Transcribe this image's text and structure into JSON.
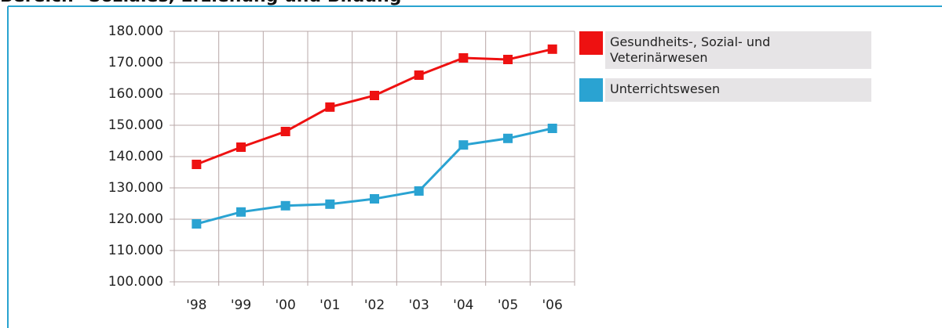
{
  "chart_data": {
    "type": "line",
    "title": "Bereich \"Soziales, Erziehung und Bildung\"",
    "categories": [
      "'98",
      "'99",
      "'00",
      "'01",
      "'02",
      "'03",
      "'04",
      "'05",
      "'06"
    ],
    "series": [
      {
        "name": "Gesundheits-, Sozial- und Veterinärwesen",
        "color": "#ee1111",
        "values": [
          137500,
          143000,
          148000,
          155800,
          159500,
          166000,
          171500,
          171000,
          174300
        ]
      },
      {
        "name": "Unterrichtswesen",
        "color": "#2aa3d2",
        "values": [
          118500,
          122300,
          124300,
          124800,
          126500,
          129000,
          143700,
          145800,
          149000
        ]
      }
    ],
    "ylim": [
      100000,
      180000
    ],
    "yticks": [
      {
        "value": 100000,
        "label": "100.000"
      },
      {
        "value": 110000,
        "label": "110.000"
      },
      {
        "value": 120000,
        "label": "120.000"
      },
      {
        "value": 130000,
        "label": "130.000"
      },
      {
        "value": 140000,
        "label": "140.000"
      },
      {
        "value": 150000,
        "label": "150.000"
      },
      {
        "value": 160000,
        "label": "160.000"
      },
      {
        "value": 170000,
        "label": "170.000"
      },
      {
        "value": 180000,
        "label": "180.000"
      }
    ],
    "grid": true
  }
}
